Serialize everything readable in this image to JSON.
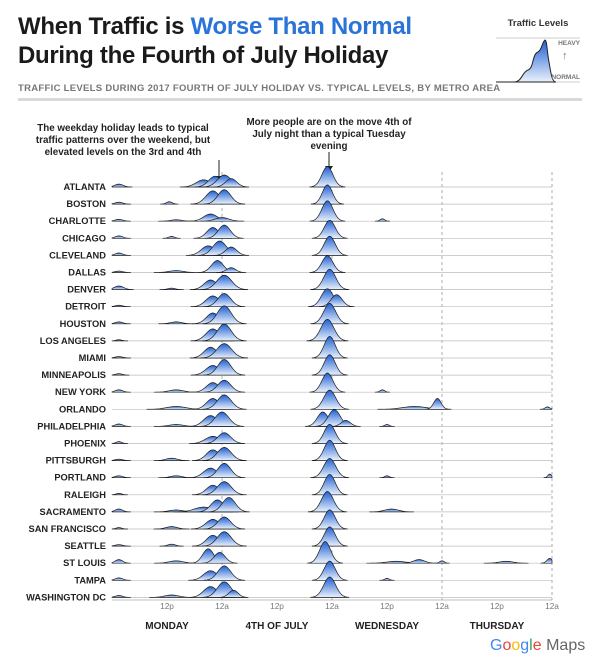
{
  "header": {
    "title_line1_pre": "When Traffic is ",
    "title_line1_highlight": "Worse Than Normal",
    "title_line2": "During the Fourth of July Holiday",
    "subtitle": "TRAFFIC LEVELS DURING 2017 FOURTH OF JULY HOLIDAY VS. TYPICAL LEVELS, BY METRO AREA"
  },
  "legend": {
    "title": "Traffic Levels",
    "heavy": "HEAVY",
    "normal": "NORMAL",
    "arrow": "↑"
  },
  "annotations": {
    "left": "The weekday holiday leads to typical traffic patterns over the weekend, but elevated levels on the 3rd and 4th",
    "right": "More people are on the move 4th of July night than a typical Tuesday evening"
  },
  "brand": {
    "google": [
      "G",
      "o",
      "o",
      "g",
      "l",
      "e"
    ],
    "maps": "Maps"
  },
  "colors": {
    "accent": "#2a73d8",
    "fill_dark": "#1f5fd1",
    "fill_light": "#eaf2fd",
    "baseline": "#b5b5b5"
  },
  "chart_data": {
    "type": "ridgeline",
    "title": "",
    "x_axis": {
      "unit": "hours",
      "range": [
        0,
        96
      ],
      "ticks": [
        {
          "hour": 12,
          "label": "12p"
        },
        {
          "hour": 24,
          "label": "12a"
        },
        {
          "hour": 36,
          "label": "12p"
        },
        {
          "hour": 48,
          "label": "12a"
        },
        {
          "hour": 60,
          "label": "12p"
        },
        {
          "hour": 72,
          "label": "12a"
        },
        {
          "hour": 84,
          "label": "12p"
        },
        {
          "hour": 96,
          "label": "12a"
        }
      ],
      "days": [
        {
          "label": "MONDAY",
          "center_hour": 12
        },
        {
          "label": "4TH OF JULY",
          "center_hour": 36
        },
        {
          "label": "WEDNESDAY",
          "center_hour": 60
        },
        {
          "label": "THURSDAY",
          "center_hour": 84
        }
      ]
    },
    "y_unit": "traffic relative to normal (0 = normal, 1 = heavy)",
    "series": [
      {
        "name": "ATLANTA",
        "peaks": [
          [
            1.5,
            0.12,
            0.9
          ],
          [
            20,
            0.3,
            1.6
          ],
          [
            22.5,
            0.45,
            1.4
          ],
          [
            24.5,
            0.5,
            1.5
          ],
          [
            26,
            0.35,
            1.2
          ],
          [
            47,
            0.85,
            1.2
          ]
        ]
      },
      {
        "name": "BOSTON",
        "peaks": [
          [
            1.5,
            0.08,
            0.8
          ],
          [
            12.5,
            0.1,
            0.6
          ],
          [
            22,
            0.55,
            1.5
          ],
          [
            24.5,
            0.6,
            1.4
          ],
          [
            47,
            0.8,
            1.1
          ]
        ]
      },
      {
        "name": "CHARLOTTE",
        "peaks": [
          [
            1.5,
            0.08,
            0.8
          ],
          [
            14,
            0.06,
            1.2
          ],
          [
            21.5,
            0.3,
            1.5
          ],
          [
            24,
            0.15,
            1.5
          ],
          [
            47,
            0.85,
            1.2
          ],
          [
            59,
            0.1,
            0.5
          ]
        ]
      },
      {
        "name": "CHICAGO",
        "peaks": [
          [
            1.5,
            0.1,
            0.8
          ],
          [
            13,
            0.08,
            0.6
          ],
          [
            22,
            0.45,
            1.3
          ],
          [
            24.5,
            0.55,
            1.3
          ],
          [
            47.5,
            0.75,
            1.2
          ]
        ]
      },
      {
        "name": "CLEVELAND",
        "peaks": [
          [
            1.5,
            0.1,
            0.8
          ],
          [
            21,
            0.4,
            1.5
          ],
          [
            23.5,
            0.6,
            1.5
          ],
          [
            26,
            0.35,
            1.2
          ],
          [
            47.5,
            0.8,
            1.2
          ]
        ]
      },
      {
        "name": "DALLAS",
        "peaks": [
          [
            1.5,
            0.06,
            0.8
          ],
          [
            14,
            0.08,
            1.5
          ],
          [
            23,
            0.5,
            1.3
          ],
          [
            26,
            0.2,
            1.0
          ],
          [
            47,
            0.7,
            1.2
          ]
        ]
      },
      {
        "name": "DENVER",
        "peaks": [
          [
            1.5,
            0.15,
            1.0
          ],
          [
            13,
            0.06,
            0.8
          ],
          [
            21.5,
            0.4,
            1.4
          ],
          [
            24.5,
            0.6,
            1.6
          ],
          [
            47.5,
            0.85,
            1.3
          ]
        ]
      },
      {
        "name": "DETROIT",
        "peaks": [
          [
            1.5,
            0.06,
            0.8
          ],
          [
            22,
            0.45,
            1.5
          ],
          [
            24.5,
            0.55,
            1.4
          ],
          [
            47,
            0.75,
            1.3
          ],
          [
            49,
            0.5,
            1.2
          ]
        ]
      },
      {
        "name": "HOUSTON",
        "peaks": [
          [
            1.5,
            0.08,
            0.8
          ],
          [
            14,
            0.08,
            1.2
          ],
          [
            22,
            0.45,
            1.4
          ],
          [
            24.5,
            0.75,
            1.5
          ],
          [
            47.5,
            0.85,
            1.3
          ]
        ]
      },
      {
        "name": "LOS ANGELES",
        "peaks": [
          [
            1.5,
            0.05,
            0.6
          ],
          [
            22,
            0.5,
            1.5
          ],
          [
            24.5,
            0.7,
            1.5
          ],
          [
            47,
            0.9,
            1.4
          ]
        ]
      },
      {
        "name": "MIAMI",
        "peaks": [
          [
            1.5,
            0.06,
            0.8
          ],
          [
            21.5,
            0.45,
            1.4
          ],
          [
            24.5,
            0.6,
            1.6
          ],
          [
            47.5,
            0.9,
            1.2
          ]
        ]
      },
      {
        "name": "MINNEAPOLIS",
        "peaks": [
          [
            1.5,
            0.06,
            0.7
          ],
          [
            22,
            0.4,
            1.5
          ],
          [
            24.5,
            0.65,
            1.4
          ],
          [
            47.5,
            0.85,
            1.2
          ]
        ]
      },
      {
        "name": "NEW YORK",
        "peaks": [
          [
            1.5,
            0.1,
            0.8
          ],
          [
            14,
            0.1,
            1.5
          ],
          [
            22,
            0.4,
            1.4
          ],
          [
            24.5,
            0.5,
            1.4
          ],
          [
            47,
            0.8,
            1.2
          ],
          [
            59,
            0.1,
            0.5
          ]
        ]
      },
      {
        "name": "ORLANDO",
        "peaks": [
          [
            14,
            0.12,
            2.0
          ],
          [
            22,
            0.45,
            1.4
          ],
          [
            24.5,
            0.6,
            1.5
          ],
          [
            47.5,
            0.8,
            1.3
          ],
          [
            66,
            0.12,
            2.5
          ],
          [
            71,
            0.45,
            0.8
          ],
          [
            95,
            0.1,
            0.5
          ]
        ]
      },
      {
        "name": "PHILADELPHIA",
        "peaks": [
          [
            1.5,
            0.1,
            0.8
          ],
          [
            14,
            0.08,
            1.5
          ],
          [
            21.5,
            0.45,
            1.5
          ],
          [
            24,
            0.6,
            1.5
          ],
          [
            46,
            0.6,
            1.2
          ],
          [
            48.5,
            0.7,
            1.3
          ],
          [
            51,
            0.25,
            1.0
          ],
          [
            60,
            0.08,
            0.5
          ]
        ]
      },
      {
        "name": "PHOENIX",
        "peaks": [
          [
            1.5,
            0.08,
            0.6
          ],
          [
            22,
            0.3,
            1.6
          ],
          [
            24.5,
            0.45,
            1.4
          ],
          [
            47.5,
            0.8,
            1.2
          ]
        ]
      },
      {
        "name": "PITTSBURGH",
        "peaks": [
          [
            1.5,
            0.06,
            0.8
          ],
          [
            13,
            0.1,
            1.2
          ],
          [
            22,
            0.45,
            1.4
          ],
          [
            24.5,
            0.55,
            1.5
          ],
          [
            47.5,
            0.85,
            1.2
          ]
        ]
      },
      {
        "name": "PORTLAND",
        "peaks": [
          [
            1.5,
            0.08,
            0.8
          ],
          [
            14,
            0.08,
            1.2
          ],
          [
            21.5,
            0.4,
            1.5
          ],
          [
            24.5,
            0.6,
            1.4
          ],
          [
            47.5,
            0.8,
            1.3
          ],
          [
            60,
            0.08,
            0.5
          ],
          [
            95.5,
            0.15,
            0.4
          ]
        ]
      },
      {
        "name": "RALEIGH",
        "peaks": [
          [
            1.5,
            0.06,
            0.6
          ],
          [
            22,
            0.4,
            1.4
          ],
          [
            24.5,
            0.55,
            1.5
          ],
          [
            47.5,
            0.85,
            1.2
          ]
        ]
      },
      {
        "name": "SACRAMENTO",
        "peaks": [
          [
            1.5,
            0.12,
            0.8
          ],
          [
            14,
            0.08,
            1.5
          ],
          [
            20,
            0.2,
            2.0
          ],
          [
            23,
            0.5,
            1.4
          ],
          [
            25.5,
            0.6,
            1.4
          ],
          [
            47,
            0.85,
            1.3
          ],
          [
            61,
            0.12,
            1.5
          ]
        ]
      },
      {
        "name": "SAN FRANCISCO",
        "peaks": [
          [
            1.5,
            0.06,
            0.6
          ],
          [
            13,
            0.1,
            1.2
          ],
          [
            22,
            0.4,
            1.5
          ],
          [
            24.5,
            0.5,
            1.4
          ],
          [
            47.5,
            0.8,
            1.2
          ]
        ]
      },
      {
        "name": "SEATTLE",
        "peaks": [
          [
            1.5,
            0.06,
            0.8
          ],
          [
            13,
            0.08,
            0.8
          ],
          [
            22,
            0.45,
            1.4
          ],
          [
            24.5,
            0.6,
            1.5
          ],
          [
            47.5,
            0.8,
            1.2
          ]
        ]
      },
      {
        "name": "ST LOUIS",
        "peaks": [
          [
            1.5,
            0.15,
            0.8
          ],
          [
            14,
            0.1,
            1.5
          ],
          [
            21,
            0.6,
            1.2
          ],
          [
            23.5,
            0.45,
            1.2
          ],
          [
            46.5,
            0.9,
            1.2
          ],
          [
            62,
            0.08,
            2.0
          ],
          [
            67,
            0.15,
            1.2
          ],
          [
            72,
            0.1,
            0.5
          ],
          [
            86,
            0.08,
            1.5
          ],
          [
            95.5,
            0.2,
            0.6
          ]
        ]
      },
      {
        "name": "TAMPA",
        "peaks": [
          [
            1.5,
            0.1,
            0.8
          ],
          [
            21.5,
            0.4,
            1.5
          ],
          [
            24.5,
            0.6,
            1.4
          ],
          [
            47.5,
            0.8,
            1.2
          ],
          [
            60,
            0.08,
            0.5
          ]
        ]
      },
      {
        "name": "WASHINGTON DC",
        "peaks": [
          [
            1.5,
            0.08,
            0.8
          ],
          [
            13,
            0.1,
            1.5
          ],
          [
            21.5,
            0.45,
            1.5
          ],
          [
            24.5,
            0.65,
            1.5
          ],
          [
            26.5,
            0.3,
            1.0
          ],
          [
            47.5,
            0.85,
            1.3
          ]
        ]
      }
    ]
  }
}
